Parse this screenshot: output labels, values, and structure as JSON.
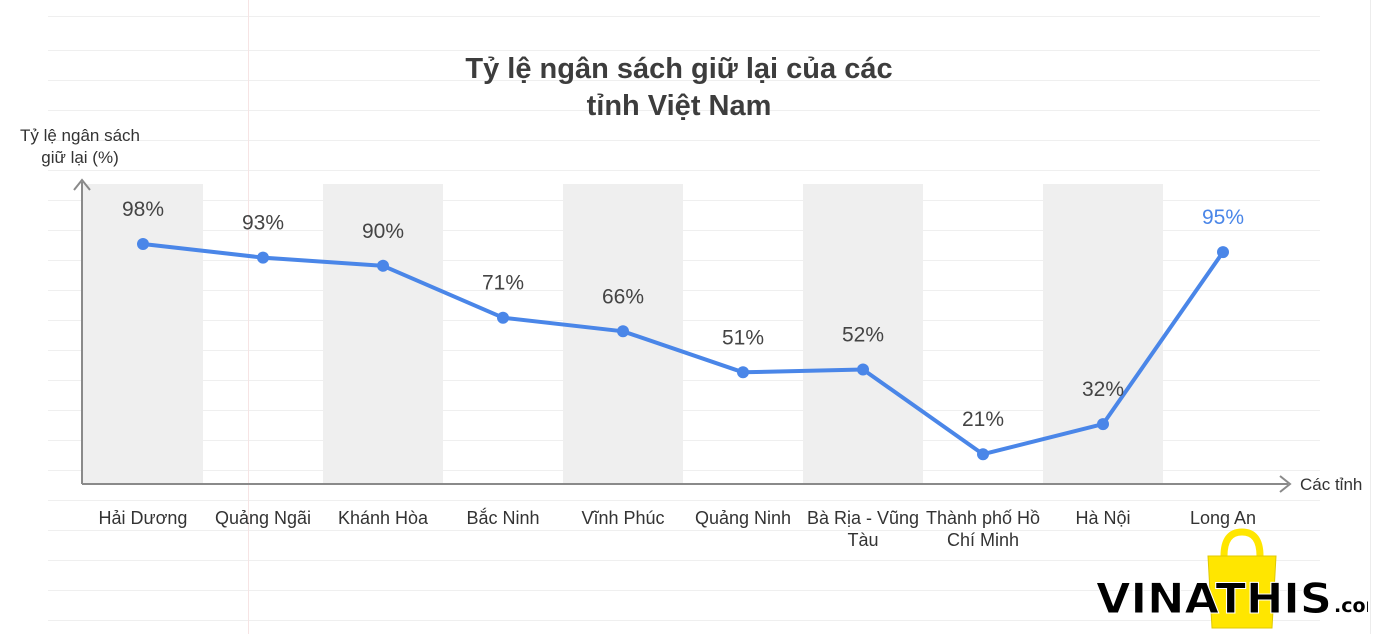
{
  "chart_data": {
    "type": "line",
    "title_lines": [
      "Tỷ lệ ngân sách giữ lại của các",
      "tỉnh Việt Nam"
    ],
    "ylabel_lines": [
      "Tỷ lệ ngân sách",
      "giữ lại (%)"
    ],
    "xlabel": "Các tỉnh",
    "categories": [
      [
        "Hải Dương"
      ],
      [
        "Quảng Ngãi"
      ],
      [
        "Khánh Hòa"
      ],
      [
        "Bắc Ninh"
      ],
      [
        "Vĩnh Phúc"
      ],
      [
        "Quảng Ninh"
      ],
      [
        "Bà Rịa - Vũng",
        "Tàu"
      ],
      [
        "Thành phố Hồ",
        "Chí Minh"
      ],
      [
        "Hà Nội"
      ],
      [
        "Long An"
      ]
    ],
    "values": [
      98,
      93,
      90,
      71,
      66,
      51,
      52,
      21,
      32,
      95
    ],
    "value_labels": [
      "98%",
      "93%",
      "90%",
      "71%",
      "66%",
      "51%",
      "52%",
      "21%",
      "32%",
      "95%"
    ],
    "highlight_index": 9,
    "ylim": [
      10,
      110
    ],
    "grid": false,
    "alternating_column_bands": true,
    "colors": {
      "line": "#4a86e8",
      "band": "#efefef",
      "axis": "#8a8a8a",
      "highlight_label": "#4a86e8"
    }
  },
  "watermark": {
    "brand_main": "VINATHIS",
    "brand_suffix": ".com",
    "icon": "shopping-bag-icon",
    "colors": {
      "bag": "#ffe600",
      "text": "#000000"
    }
  }
}
